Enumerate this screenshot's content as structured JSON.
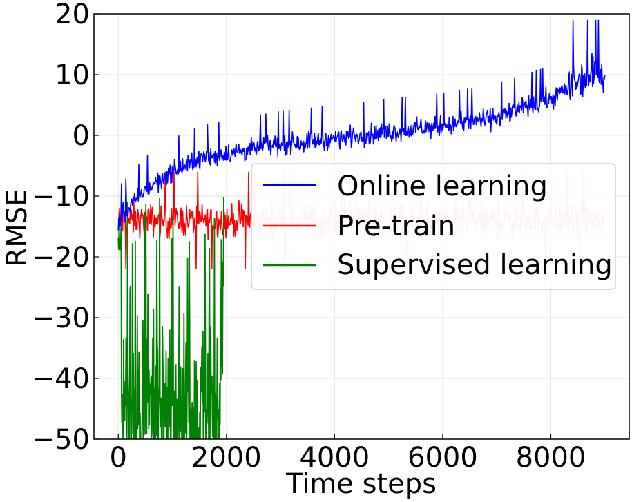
{
  "chart_data": {
    "type": "line",
    "xlabel": "Time steps",
    "ylabel": "RMSE",
    "xlim": [
      -450,
      9450
    ],
    "ylim": [
      -50,
      20
    ],
    "xticks": [
      0,
      2000,
      4000,
      6000,
      8000
    ],
    "yticks": [
      20,
      10,
      0,
      -10,
      -20,
      -30,
      -40,
      -50
    ],
    "xtick_labels": [
      "0",
      "2000",
      "4000",
      "6000",
      "8000"
    ],
    "ytick_labels": [
      "20",
      "10",
      "0",
      "−10",
      "−20",
      "−30",
      "−40",
      "−50"
    ],
    "grid": true,
    "legend_position": "center-right",
    "series": [
      {
        "name": "Online learning",
        "color": "#0000ff",
        "x_range": [
          0,
          9000
        ],
        "trend_x": [
          0,
          500,
          1000,
          1500,
          2000,
          3000,
          4000,
          5000,
          6000,
          7000,
          8000,
          8500,
          9000
        ],
        "trend_y": [
          -14,
          -9,
          -6,
          -4,
          -3,
          -1.5,
          -0.5,
          0.5,
          1.5,
          3,
          6,
          9,
          11
        ],
        "noise_amplitude": 2.5,
        "min": -17,
        "max": 19
      },
      {
        "name": "Pre-train",
        "color": "#ff0000",
        "faded_color": "#ffc8c8",
        "x_range": [
          0,
          9000
        ],
        "faded_after_x": 2450,
        "mean": -14,
        "noise_amplitude": 4,
        "min": -26,
        "max": -5
      },
      {
        "name": "Supervised learning",
        "color": "#008000",
        "x_range": [
          0,
          1950
        ],
        "mean": -45,
        "noise_amplitude": 12,
        "min": -50,
        "max": -8
      }
    ]
  }
}
